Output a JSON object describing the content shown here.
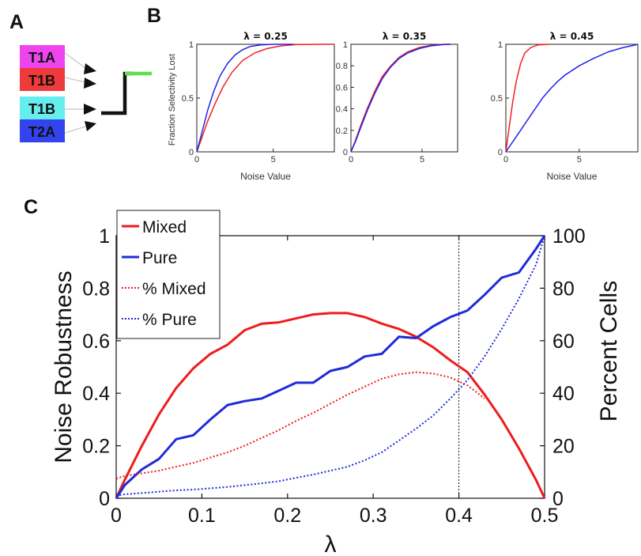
{
  "panel_labels": {
    "a": "A",
    "b": "B",
    "c": "C"
  },
  "panel_a": {
    "boxes": [
      {
        "label": "T1A",
        "color": "#ee44ee"
      },
      {
        "label": "T1B",
        "color": "#ee3a3a"
      },
      {
        "label": "T1B",
        "color": "#66eeee"
      },
      {
        "label": "T2A",
        "color": "#3344ee"
      }
    ],
    "connector_color": "#5ee04a"
  },
  "panel_b": {
    "xlabel": "Noise Value",
    "ylabel": "Fraction Selectivity Lost",
    "subplots": [
      {
        "title": "λ = 0.25",
        "xlim": [
          0,
          9
        ],
        "ylim": [
          0,
          1
        ],
        "xticks": [
          "0",
          "5"
        ],
        "yticks": [
          "0",
          "0.5",
          "1"
        ],
        "series": [
          {
            "color": "#ee2222",
            "points": [
              [
                0,
                0
              ],
              [
                0.3,
                0.12
              ],
              [
                0.7,
                0.28
              ],
              [
                1.2,
                0.45
              ],
              [
                1.7,
                0.6
              ],
              [
                2.3,
                0.74
              ],
              [
                3,
                0.85
              ],
              [
                3.8,
                0.92
              ],
              [
                4.6,
                0.96
              ],
              [
                5.5,
                0.985
              ],
              [
                6.5,
                0.997
              ],
              [
                8,
                1
              ],
              [
                9,
                1
              ]
            ]
          },
          {
            "color": "#2222ee",
            "points": [
              [
                0,
                0
              ],
              [
                0.3,
                0.16
              ],
              [
                0.7,
                0.38
              ],
              [
                1.1,
                0.56
              ],
              [
                1.5,
                0.7
              ],
              [
                2,
                0.82
              ],
              [
                2.5,
                0.9
              ],
              [
                3,
                0.95
              ],
              [
                3.5,
                0.98
              ],
              [
                4.2,
                0.995
              ],
              [
                5,
                1
              ],
              [
                6.3,
                1
              ]
            ]
          }
        ]
      },
      {
        "title": "λ = 0.35",
        "xlim": [
          0,
          7.5
        ],
        "ylim": [
          0,
          1
        ],
        "xticks": [
          "0",
          "5"
        ],
        "yticks": [
          "0",
          "0.2",
          "0.4",
          "0.6",
          "0.8",
          "1"
        ],
        "series": [
          {
            "color": "#ee2222",
            "points": [
              [
                0,
                0
              ],
              [
                0.3,
                0.1
              ],
              [
                0.7,
                0.25
              ],
              [
                1.2,
                0.42
              ],
              [
                1.7,
                0.57
              ],
              [
                2.2,
                0.7
              ],
              [
                2.8,
                0.8
              ],
              [
                3.4,
                0.88
              ],
              [
                4,
                0.93
              ],
              [
                4.8,
                0.97
              ],
              [
                5.6,
                0.99
              ],
              [
                6.5,
                1
              ],
              [
                7,
                1
              ]
            ]
          },
          {
            "color": "#2222ee",
            "points": [
              [
                0,
                0
              ],
              [
                0.3,
                0.09
              ],
              [
                0.7,
                0.23
              ],
              [
                1.2,
                0.4
              ],
              [
                1.7,
                0.55
              ],
              [
                2.2,
                0.68
              ],
              [
                2.8,
                0.79
              ],
              [
                3.4,
                0.87
              ],
              [
                4,
                0.92
              ],
              [
                4.8,
                0.96
              ],
              [
                5.6,
                0.985
              ],
              [
                6.5,
                0.997
              ],
              [
                7,
                1
              ]
            ]
          }
        ]
      },
      {
        "title": "λ = 0.45",
        "xlim": [
          0,
          9
        ],
        "ylim": [
          0,
          1
        ],
        "xticks": [
          "0",
          "5"
        ],
        "yticks": [
          "0",
          "0.5",
          "1"
        ],
        "series": [
          {
            "color": "#ee2222",
            "points": [
              [
                0,
                0
              ],
              [
                0.2,
                0.2
              ],
              [
                0.45,
                0.45
              ],
              [
                0.7,
                0.65
              ],
              [
                1,
                0.82
              ],
              [
                1.3,
                0.92
              ],
              [
                1.7,
                0.97
              ],
              [
                2.2,
                0.995
              ],
              [
                3,
                1
              ]
            ]
          },
          {
            "color": "#2222ee",
            "points": [
              [
                0,
                0
              ],
              [
                0.5,
                0.1
              ],
              [
                1,
                0.2
              ],
              [
                1.5,
                0.3
              ],
              [
                2,
                0.4
              ],
              [
                2.5,
                0.5
              ],
              [
                3,
                0.58
              ],
              [
                3.5,
                0.65
              ],
              [
                4,
                0.71
              ],
              [
                5,
                0.8
              ],
              [
                6,
                0.87
              ],
              [
                7,
                0.93
              ],
              [
                8,
                0.97
              ],
              [
                8.7,
                0.99
              ],
              [
                9,
                1
              ]
            ]
          }
        ]
      }
    ]
  },
  "chart_data": {
    "type": "line",
    "xlabel": "λ",
    "ylabel": "Noise Robustness",
    "y2label": "Percent Cells",
    "xlim": [
      0,
      0.5
    ],
    "ylim": [
      0,
      1
    ],
    "y2lim": [
      0,
      100
    ],
    "xticks": [
      "0",
      "0.1",
      "0.2",
      "0.3",
      "0.4",
      "0.5"
    ],
    "yticks": [
      "0",
      "0.2",
      "0.4",
      "0.6",
      "0.8",
      "1"
    ],
    "y2ticks": [
      "0",
      "20",
      "40",
      "60",
      "80",
      "100"
    ],
    "vline_x": 0.4,
    "legend_position": "top-left",
    "x": [
      0,
      0.01,
      0.03,
      0.05,
      0.07,
      0.09,
      0.11,
      0.13,
      0.15,
      0.17,
      0.19,
      0.21,
      0.23,
      0.25,
      0.27,
      0.29,
      0.31,
      0.33,
      0.35,
      0.37,
      0.39,
      0.41,
      0.43,
      0.45,
      0.47,
      0.49,
      0.5
    ],
    "series": [
      {
        "name": "Mixed",
        "axis": "left",
        "color": "#ee1c1c",
        "dash": "solid",
        "values": [
          0,
          0.07,
          0.2,
          0.32,
          0.42,
          0.495,
          0.55,
          0.585,
          0.64,
          0.665,
          0.67,
          0.685,
          0.7,
          0.705,
          0.705,
          0.69,
          0.665,
          0.645,
          0.615,
          0.575,
          0.525,
          0.48,
          0.395,
          0.3,
          0.19,
          0.07,
          0
        ]
      },
      {
        "name": "Pure",
        "axis": "left",
        "color": "#1f2bd8",
        "dash": "solid",
        "values": [
          0,
          0.05,
          0.11,
          0.15,
          0.225,
          0.24,
          0.3,
          0.355,
          0.37,
          0.38,
          0.41,
          0.44,
          0.44,
          0.485,
          0.5,
          0.54,
          0.55,
          0.615,
          0.61,
          0.655,
          0.69,
          0.715,
          0.775,
          0.84,
          0.86,
          0.95,
          1
        ]
      },
      {
        "name": "% Mixed",
        "axis": "right",
        "color": "#ee1c1c",
        "dash": "dotted",
        "values": [
          7.5,
          8.5,
          9.5,
          10.5,
          12,
          13.5,
          15.5,
          17.5,
          20,
          23,
          26,
          29.5,
          32.5,
          36,
          39.5,
          42.5,
          45.5,
          47.2,
          48,
          47.5,
          46,
          43,
          38,
          null,
          null,
          null,
          null
        ]
      },
      {
        "name": "% Pure",
        "axis": "right",
        "color": "#1f2bd8",
        "dash": "dotted",
        "values": [
          1,
          1.5,
          2,
          2.5,
          3,
          3.3,
          3.8,
          4.3,
          5,
          5.7,
          6.5,
          7.8,
          9,
          10.5,
          12,
          14.5,
          17.5,
          22,
          26.5,
          31.5,
          38,
          45,
          54,
          64.5,
          76,
          89,
          100
        ]
      }
    ]
  }
}
